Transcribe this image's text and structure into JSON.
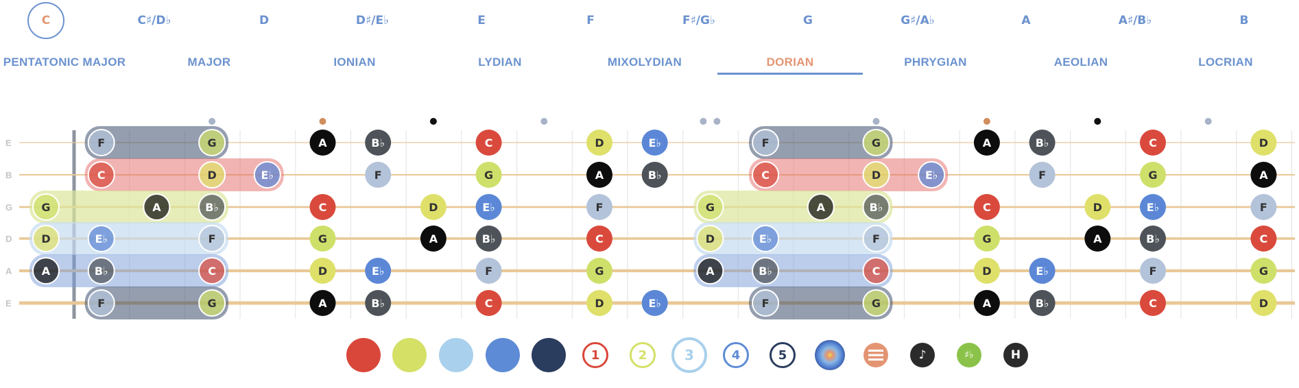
{
  "keys": [
    "C",
    "C♯/D♭",
    "D",
    "D♯/E♭",
    "E",
    "F",
    "F♯/G♭",
    "G",
    "G♯/A♭",
    "A",
    "A♯/B♭",
    "B"
  ],
  "selected_key": "C",
  "modes": [
    "PENTATONIC MAJOR",
    "MAJOR",
    "IONIAN",
    "LYDIAN",
    "MIXOLYDIAN",
    "DORIAN",
    "PHRYGIAN",
    "AEOLIAN",
    "LOCRIAN"
  ],
  "active_mode": "DORIAN",
  "string_labels": [
    "E",
    "B",
    "G",
    "D",
    "A",
    "E"
  ],
  "fret_markers": [
    {
      "fret": 3,
      "color": "#a8b3c8"
    },
    {
      "fret": 5,
      "color": "#d08e5e"
    },
    {
      "fret": 7,
      "color": "#111111"
    },
    {
      "fret": 9,
      "color": "#a8b3c8"
    },
    {
      "fret": 12,
      "color": "#a8b3c8",
      "double": true
    },
    {
      "fret": 15,
      "color": "#a8b3c8"
    },
    {
      "fret": 17,
      "color": "#d08e5e"
    },
    {
      "fret": 19,
      "color": "#111111"
    },
    {
      "fret": 21,
      "color": "#a8b3c8"
    }
  ],
  "notes": [
    [
      "F",
      1
    ],
    [
      "G",
      3
    ],
    [
      "A",
      5
    ],
    [
      "B♭",
      6
    ],
    [
      "C",
      8
    ],
    [
      "D",
      10
    ],
    [
      "E♭",
      11
    ],
    [
      "F",
      13
    ],
    [
      "G",
      15
    ],
    [
      "A",
      17
    ],
    [
      "B♭",
      18
    ],
    [
      "C",
      20
    ],
    [
      "D",
      22
    ],
    [
      "C",
      1
    ],
    [
      "D",
      3
    ],
    [
      "E♭",
      4
    ],
    [
      "F",
      6
    ],
    [
      "G",
      8
    ],
    [
      "A",
      10
    ],
    [
      "B♭",
      11
    ],
    [
      "C",
      13
    ],
    [
      "D",
      15
    ],
    [
      "E♭",
      16
    ],
    [
      "F",
      18
    ],
    [
      "G",
      20
    ],
    [
      "A",
      22
    ],
    [
      "G",
      0
    ],
    [
      "A",
      2
    ],
    [
      "B♭",
      3
    ],
    [
      "C",
      5
    ],
    [
      "D",
      7
    ],
    [
      "E♭",
      8
    ],
    [
      "F",
      10
    ],
    [
      "G",
      12
    ],
    [
      "A",
      14
    ],
    [
      "B♭",
      15
    ],
    [
      "C",
      17
    ],
    [
      "D",
      19
    ],
    [
      "E♭",
      20
    ],
    [
      "F",
      22
    ],
    [
      "D",
      0
    ],
    [
      "E♭",
      1
    ],
    [
      "F",
      3
    ],
    [
      "G",
      5
    ],
    [
      "A",
      7
    ],
    [
      "B♭",
      8
    ],
    [
      "C",
      10
    ],
    [
      "D",
      12
    ],
    [
      "E♭",
      13
    ],
    [
      "F",
      15
    ],
    [
      "G",
      17
    ],
    [
      "A",
      19
    ],
    [
      "B♭",
      20
    ],
    [
      "C",
      22
    ],
    [
      "A",
      0
    ],
    [
      "B♭",
      1
    ],
    [
      "C",
      3
    ],
    [
      "D",
      5
    ],
    [
      "E♭",
      6
    ],
    [
      "F",
      8
    ],
    [
      "G",
      10
    ],
    [
      "A",
      12
    ],
    [
      "B♭",
      13
    ],
    [
      "C",
      15
    ],
    [
      "D",
      17
    ],
    [
      "E♭",
      18
    ],
    [
      "F",
      20
    ],
    [
      "G",
      22
    ],
    [
      "F",
      1
    ],
    [
      "G",
      3
    ],
    [
      "A",
      5
    ],
    [
      "B♭",
      6
    ],
    [
      "C",
      8
    ],
    [
      "D",
      10
    ],
    [
      "E♭",
      11
    ],
    [
      "F",
      13
    ],
    [
      "G",
      15
    ],
    [
      "A",
      17
    ],
    [
      "B♭",
      18
    ],
    [
      "C",
      20
    ],
    [
      "D",
      22
    ]
  ],
  "note_colors": {
    "C": "#d94a3d",
    "D": "#dfe06a",
    "E♭": "#5b87d6",
    "F": "#b3c3da",
    "G": "#cfe06a",
    "A": "#0d0d0d",
    "B♭": "#4d5358"
  },
  "shape_colors": {
    "grey": "#3d4e6e",
    "red": "#e46a68",
    "yellow": "#dbe69a",
    "lightblue": "#c6dbf0",
    "blue": "#7a9cd9"
  },
  "toolbar": {
    "swatches": [
      "#d9473b",
      "#d4e066",
      "#a9d0ec",
      "#5e8bd6",
      "#2b3d5e"
    ],
    "numbers": [
      {
        "label": "1",
        "color": "#d9473b"
      },
      {
        "label": "2",
        "color": "#d4e066"
      },
      {
        "label": "3",
        "color": "#a9d0ec"
      },
      {
        "label": "4",
        "color": "#5e8bd6"
      },
      {
        "label": "5",
        "color": "#2b3d5e"
      }
    ],
    "menu_icon_color": "#e39573",
    "note_icon_glyph": "♪",
    "accidental_icon_label": "♯♭",
    "accidental_icon_color": "#8bc34a",
    "h_icon_label": "H"
  }
}
